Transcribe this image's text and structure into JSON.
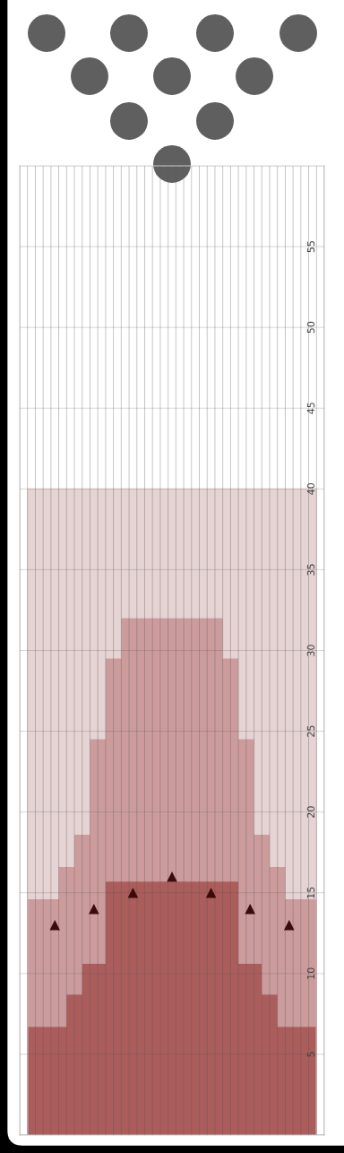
{
  "chart_data": {
    "type": "area",
    "stacked": true,
    "categories": [
      null,
      null,
      null,
      null,
      null,
      null,
      null,
      null,
      null,
      null,
      null,
      null,
      null,
      null,
      null,
      null,
      null,
      null,
      null,
      null,
      null,
      null,
      null,
      null,
      null,
      null,
      null,
      null,
      null,
      null,
      null,
      null,
      null,
      null,
      null,
      null,
      null,
      null,
      null
    ],
    "series": [
      {
        "color": "#ab5d5c",
        "values": [
          0,
          6.7,
          6.7,
          6.7,
          6.7,
          6.7,
          8.7,
          8.7,
          10.6,
          10.6,
          10.6,
          15.7,
          15.7,
          15.7,
          15.7,
          15.7,
          15.7,
          15.7,
          15.7,
          15.7,
          15.7,
          15.7,
          15.7,
          15.7,
          15.7,
          15.7,
          15.7,
          15.7,
          10.6,
          10.6,
          10.6,
          8.7,
          8.7,
          6.7,
          6.7,
          6.7,
          6.7,
          6.7,
          0
        ]
      },
      {
        "color": "#cc9c9d",
        "values": [
          0,
          7.9,
          7.9,
          7.9,
          7.9,
          9.9,
          7.9,
          9.9,
          8.0,
          13.9,
          13.9,
          13.8,
          13.8,
          16.3,
          16.3,
          16.3,
          16.3,
          16.3,
          16.3,
          16.3,
          16.3,
          16.3,
          16.3,
          16.3,
          16.3,
          16.3,
          13.8,
          13.8,
          13.9,
          13.9,
          8.0,
          9.9,
          7.9,
          9.9,
          7.9,
          7.9,
          7.9,
          7.9,
          0
        ]
      },
      {
        "color": "#e6d3d4",
        "values": [
          0,
          25.4,
          25.4,
          25.4,
          25.4,
          23.4,
          23.4,
          21.4,
          21.4,
          15.5,
          15.5,
          10.5,
          10.5,
          8.0,
          8.0,
          8.0,
          8.0,
          8.0,
          8.0,
          8.0,
          8.0,
          8.0,
          8.0,
          8.0,
          8.0,
          8.0,
          10.5,
          10.5,
          15.5,
          15.5,
          21.4,
          21.4,
          23.4,
          23.4,
          25.4,
          25.4,
          25.4,
          25.4,
          0
        ]
      },
      {
        "type": "scatter",
        "color": "#3d0a0a",
        "marker": "triangle",
        "values": [
          null,
          null,
          null,
          null,
          13,
          null,
          null,
          null,
          null,
          14,
          null,
          null,
          null,
          null,
          15,
          null,
          null,
          null,
          null,
          16,
          null,
          null,
          null,
          null,
          15,
          null,
          null,
          null,
          null,
          14,
          null,
          null,
          null,
          null,
          13,
          null,
          null,
          null,
          null
        ]
      }
    ],
    "ylim": [
      0,
      60
    ],
    "yticks": [
      5,
      10,
      15,
      20,
      25,
      30,
      35,
      40,
      45,
      50,
      55
    ],
    "grid": true,
    "tick_labels": "y"
  }
}
